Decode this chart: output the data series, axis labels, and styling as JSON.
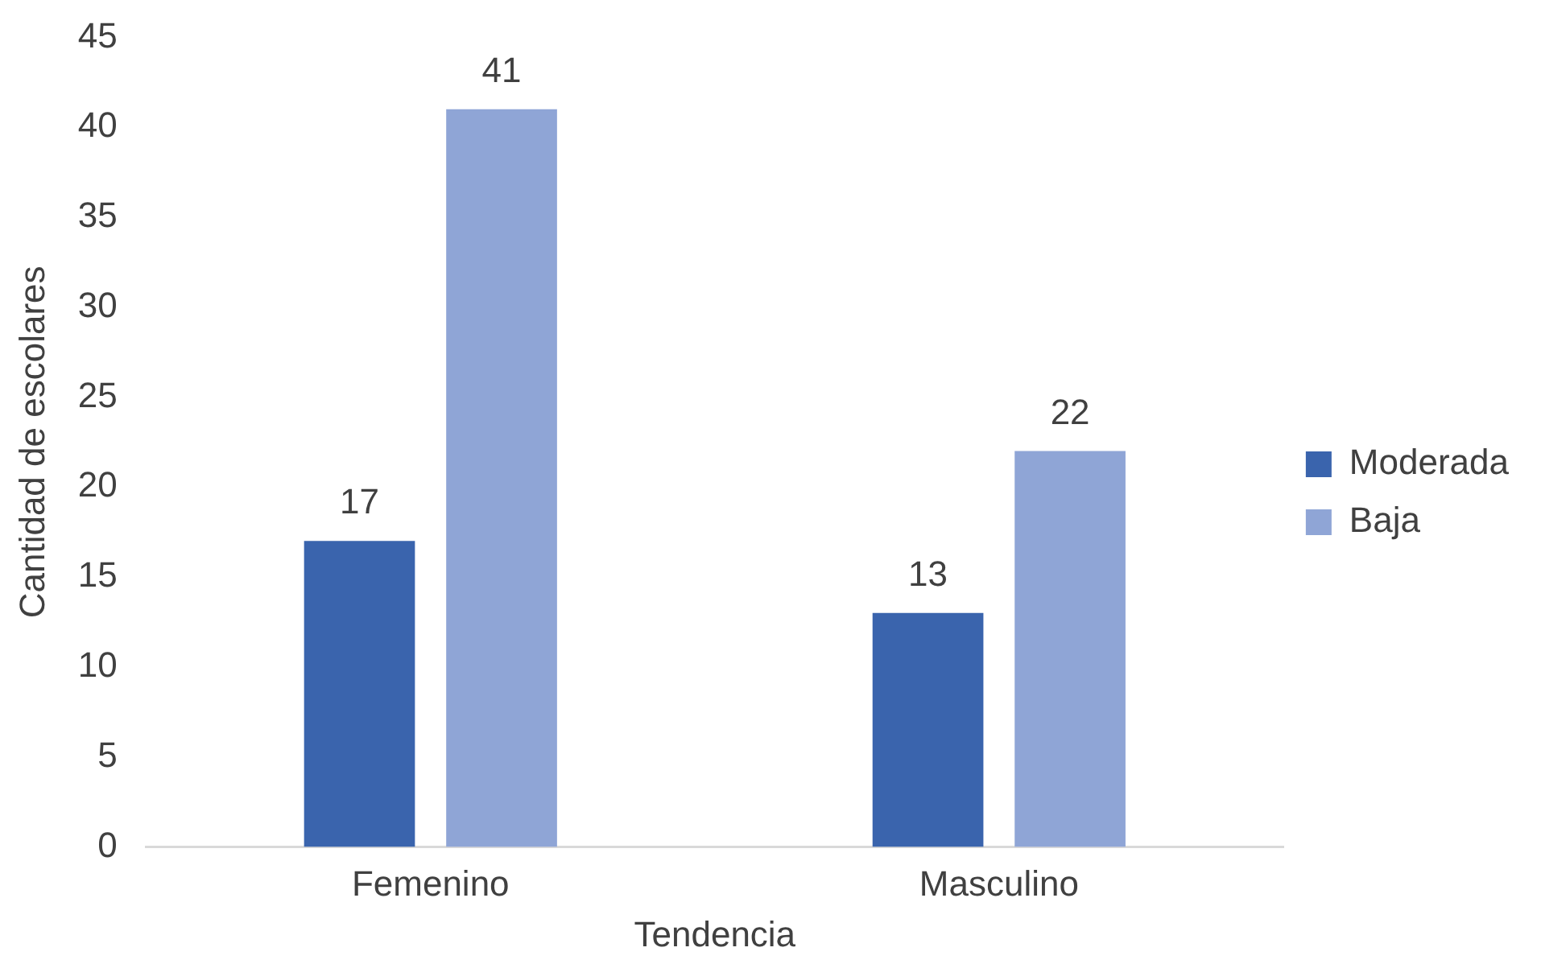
{
  "chart_data": {
    "type": "bar",
    "xlabel": "Tendencia",
    "ylabel": "Cantidad de escolares",
    "categories": [
      "Femenino",
      "Masculino"
    ],
    "series": [
      {
        "name": "Moderada",
        "color": "#3a64ad",
        "values": [
          17,
          13
        ]
      },
      {
        "name": "Baja",
        "color": "#8fa5d6",
        "values": [
          41,
          22
        ]
      }
    ],
    "ylim": [
      0,
      45
    ],
    "yticks": [
      0,
      5,
      10,
      15,
      20,
      25,
      30,
      35,
      40,
      45
    ],
    "grid": false,
    "legend": "right",
    "data_labels": true
  }
}
